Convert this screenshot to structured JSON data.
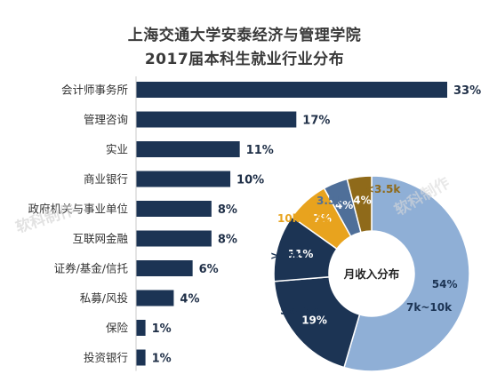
{
  "title": [
    "上海交通大学安泰经济与管理学院",
    "2017届本科生就业行业分布"
  ],
  "watermark": "软科制作",
  "colors": {
    "bar": "#1c3454",
    "bar_value": "#1f2f47",
    "pie_navy": "#1c3454",
    "pie_light": "#8fafd6",
    "pie_mid": "#4f6f99",
    "pie_orange": "#e8a31e",
    "pie_brown": "#8f6a1a"
  },
  "chart_data": [
    {
      "type": "bar",
      "orientation": "horizontal",
      "title": "上海交通大学安泰经济与管理学院 2017届本科生就业行业分布",
      "categories": [
        "会计师事务所",
        "管理咨询",
        "实业",
        "商业银行",
        "政府机关与事业单位",
        "互联网金融",
        "证券/基金/信托",
        "私募/风投",
        "保险",
        "投资银行"
      ],
      "values": [
        33,
        17,
        11,
        10,
        8,
        8,
        6,
        4,
        1,
        1
      ],
      "value_labels": [
        "33%",
        "17%",
        "11%",
        "10%",
        "8%",
        "8%",
        "6%",
        "4%",
        "1%",
        "1%"
      ],
      "unit": "%"
    },
    {
      "type": "pie",
      "donut": true,
      "center_label": "月收入分布",
      "slices": [
        {
          "name": "7k~10k",
          "value": 54,
          "label": "54%",
          "color": "#8fafd6"
        },
        {
          "name": "5k~7k",
          "value": 19,
          "label": "19%",
          "color": "#1c3454"
        },
        {
          "name": ">15k",
          "value": 11,
          "label": "11%",
          "color": "#1c3454"
        },
        {
          "name": "10k~15k",
          "value": 7,
          "label": "7%",
          "color": "#e8a31e"
        },
        {
          "name": "3.5k~5k",
          "value": 4,
          "label": "4%",
          "color": "#4f6f99"
        },
        {
          "name": "<3.5k",
          "value": 4,
          "label": "4%",
          "color": "#8f6a1a"
        }
      ]
    }
  ]
}
